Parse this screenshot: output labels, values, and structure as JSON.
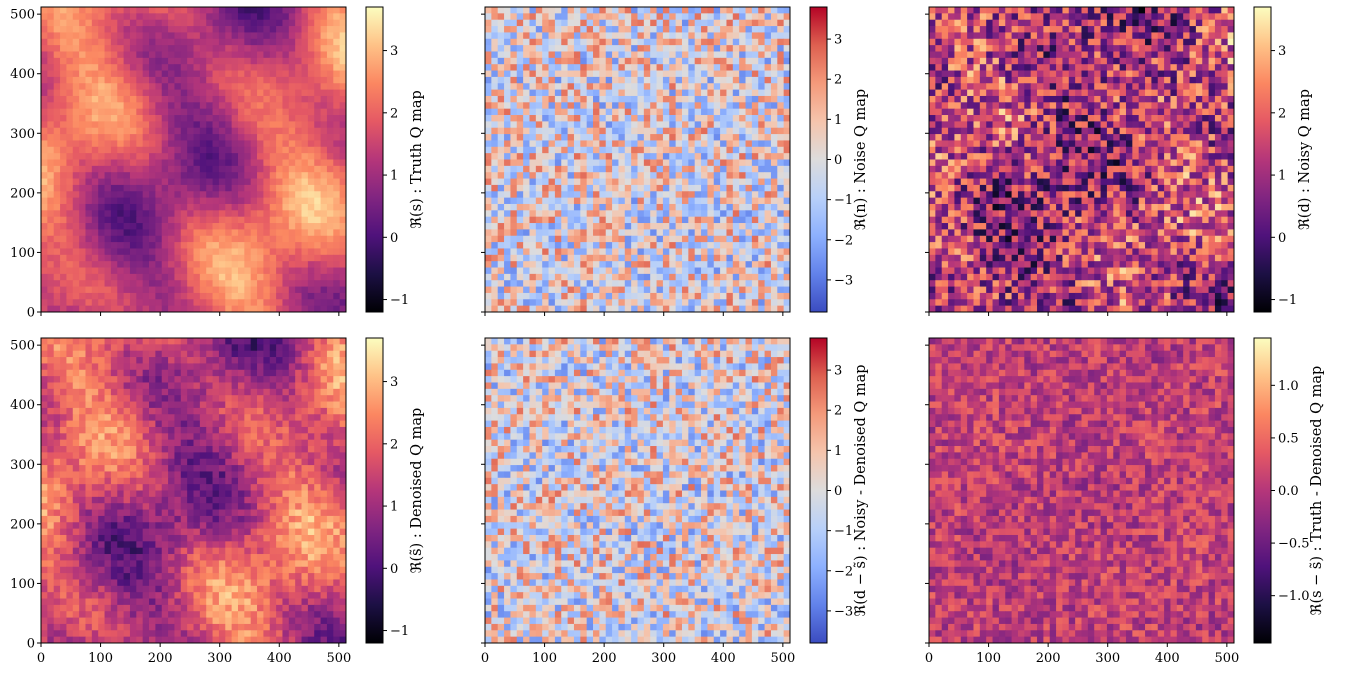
{
  "chart_data": [
    {
      "type": "heatmap",
      "row": 0,
      "col": 0,
      "colormap": "magma",
      "field": "truth",
      "xlim": [
        0,
        512
      ],
      "ylim": [
        0,
        512
      ],
      "xticks": [
        0,
        100,
        200,
        300,
        400,
        500
      ],
      "yticks": [
        0,
        100,
        200,
        300,
        400,
        500
      ],
      "xticklabels_visible": false,
      "yticklabels_visible": true,
      "colorbar": {
        "range": [
          -1.2,
          3.7
        ],
        "ticks": [
          -1,
          0,
          1,
          2,
          3
        ],
        "ticklabels": [
          "−1",
          "0",
          "1",
          "2",
          "3"
        ],
        "label": "ℜ(s) : Truth Q map"
      }
    },
    {
      "type": "heatmap",
      "row": 0,
      "col": 1,
      "colormap": "coolwarm",
      "field": "noise",
      "xlim": [
        0,
        512
      ],
      "ylim": [
        0,
        512
      ],
      "xticks": [
        0,
        100,
        200,
        300,
        400,
        500
      ],
      "yticks": [
        0,
        100,
        200,
        300,
        400,
        500
      ],
      "xticklabels_visible": false,
      "yticklabels_visible": false,
      "colorbar": {
        "range": [
          -3.8,
          3.8
        ],
        "ticks": [
          -3,
          -2,
          -1,
          0,
          1,
          2,
          3
        ],
        "ticklabels": [
          "−3",
          "−2",
          "−1",
          "0",
          "1",
          "2",
          "3"
        ],
        "label": "ℜ(n) : Noise Q map"
      }
    },
    {
      "type": "heatmap",
      "row": 0,
      "col": 2,
      "colormap": "magma",
      "field": "noisy",
      "xlim": [
        0,
        512
      ],
      "ylim": [
        0,
        512
      ],
      "xticks": [
        0,
        100,
        200,
        300,
        400,
        500
      ],
      "yticks": [
        0,
        100,
        200,
        300,
        400,
        500
      ],
      "xticklabels_visible": false,
      "yticklabels_visible": false,
      "colorbar": {
        "range": [
          -1.2,
          3.7
        ],
        "ticks": [
          -1,
          0,
          1,
          2,
          3
        ],
        "ticklabels": [
          "−1",
          "0",
          "1",
          "2",
          "3"
        ],
        "label": "ℜ(d) : Noisy Q map"
      }
    },
    {
      "type": "heatmap",
      "row": 1,
      "col": 0,
      "colormap": "magma",
      "field": "denoised",
      "xlim": [
        0,
        512
      ],
      "ylim": [
        0,
        512
      ],
      "xticks": [
        0,
        100,
        200,
        300,
        400,
        500
      ],
      "yticks": [
        0,
        100,
        200,
        300,
        400,
        500
      ],
      "xticklabels_visible": true,
      "yticklabels_visible": true,
      "colorbar": {
        "range": [
          -1.2,
          3.7
        ],
        "ticks": [
          -1,
          0,
          1,
          2,
          3
        ],
        "ticklabels": [
          "−1",
          "0",
          "1",
          "2",
          "3"
        ],
        "label": "ℜ(s̃) : Denoised Q map"
      }
    },
    {
      "type": "heatmap",
      "row": 1,
      "col": 1,
      "colormap": "coolwarm",
      "field": "noisy_minus_denoised",
      "xlim": [
        0,
        512
      ],
      "ylim": [
        0,
        512
      ],
      "xticks": [
        0,
        100,
        200,
        300,
        400,
        500
      ],
      "yticks": [
        0,
        100,
        200,
        300,
        400,
        500
      ],
      "xticklabels_visible": true,
      "yticklabels_visible": false,
      "colorbar": {
        "range": [
          -3.8,
          3.8
        ],
        "ticks": [
          -3,
          -2,
          -1,
          0,
          1,
          2,
          3
        ],
        "ticklabels": [
          "−3",
          "−2",
          "−1",
          "0",
          "1",
          "2",
          "3"
        ],
        "label": "ℜ(d − s̃) : Noisy - Denoised Q map"
      }
    },
    {
      "type": "heatmap",
      "row": 1,
      "col": 2,
      "colormap": "magma",
      "field": "truth_minus_denoised",
      "xlim": [
        0,
        512
      ],
      "ylim": [
        0,
        512
      ],
      "xticks": [
        0,
        100,
        200,
        300,
        400,
        500
      ],
      "yticks": [
        0,
        100,
        200,
        300,
        400,
        500
      ],
      "xticklabels_visible": true,
      "yticklabels_visible": false,
      "colorbar": {
        "range": [
          -1.45,
          1.45
        ],
        "ticks": [
          -1.0,
          -0.5,
          0.0,
          0.5,
          1.0
        ],
        "ticklabels": [
          "−1.0",
          "−0.5",
          "0.0",
          "0.5",
          "1.0"
        ],
        "label": "ℜ(s − s̃) : Truth - Denoised Q map"
      }
    }
  ]
}
